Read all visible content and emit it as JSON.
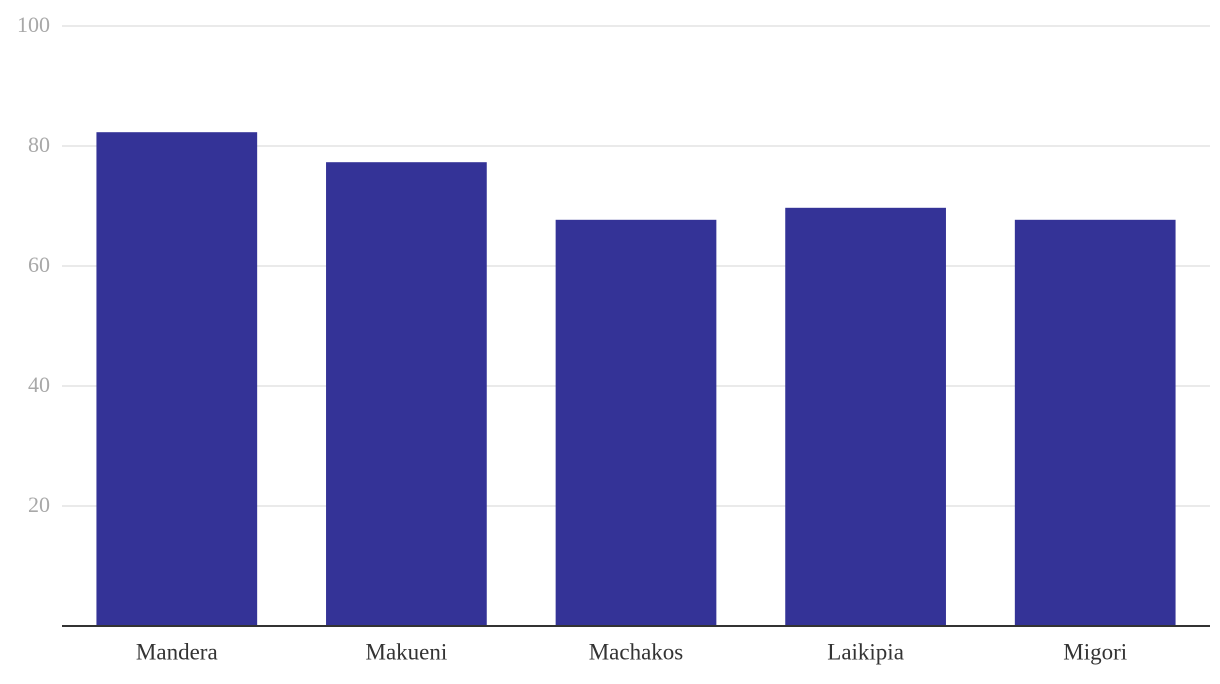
{
  "chart_data": {
    "type": "bar",
    "categories": [
      "Mandera",
      "Makueni",
      "Machakos",
      "Laikipia",
      "Migori"
    ],
    "values": [
      82.3,
      77.3,
      67.7,
      69.7,
      67.7
    ],
    "color": "#343397",
    "ylim": [
      0,
      100
    ],
    "yticks": [
      20,
      40,
      60,
      80,
      100
    ],
    "grid": true
  }
}
